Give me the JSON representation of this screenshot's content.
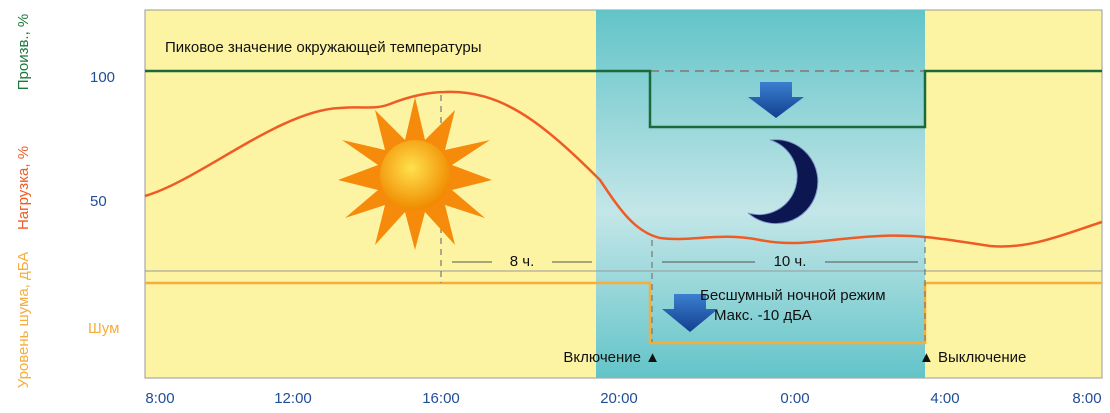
{
  "labels": {
    "production": "Произв., %",
    "load": "Нагрузка, %",
    "noise_level": "Уровень шума, дБА",
    "tick_100": "100",
    "tick_50": "50",
    "noise": "Шум"
  },
  "annotations": {
    "peak": "Пиковое значение окружающей температуры",
    "hours_8": "8 ч.",
    "hours_10": "10 ч.",
    "silent_mode": "Бесшумный ночной режим",
    "max_noise": "Макс. -10 дБА",
    "on": "Включение ▲",
    "off": "▲ Выключение"
  },
  "times": [
    "8:00",
    "12:00",
    "16:00",
    "20:00",
    "0:00",
    "4:00",
    "8:00"
  ]
}
